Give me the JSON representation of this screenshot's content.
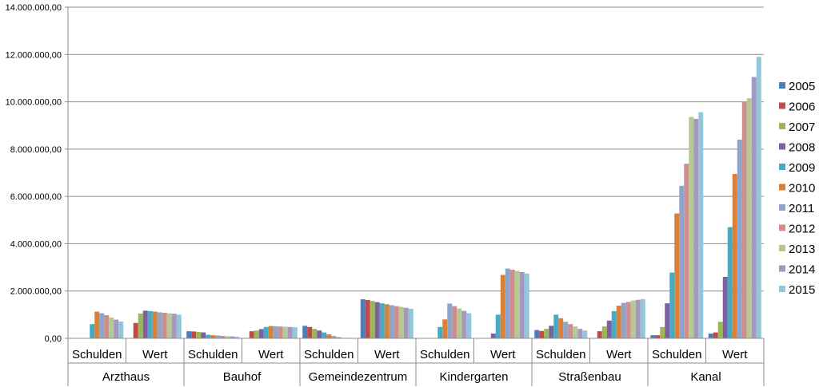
{
  "chart_data": {
    "type": "bar",
    "title": "",
    "xlabel": "",
    "ylabel": "",
    "ylim": [
      0,
      14000000
    ],
    "y_ticks": [
      0,
      2000000,
      4000000,
      6000000,
      8000000,
      10000000,
      12000000,
      14000000
    ],
    "y_tick_labels": [
      "0,00",
      "2.000.000,00",
      "4.000.000,00",
      "6.000.000,00",
      "8.000.000,00",
      "10.000.000,00",
      "12.000.000,00",
      "14.000.000,00"
    ],
    "grid": true,
    "legend_position": "right",
    "groups": [
      "Arzthaus",
      "Bauhof",
      "Gemeindezentrum",
      "Kindergarten",
      "Straßenbau",
      "Kanal"
    ],
    "subcategories": [
      "Schulden",
      "Wert"
    ],
    "categories": [
      "Arzthaus Schulden",
      "Arzthaus Wert",
      "Bauhof Schulden",
      "Bauhof Wert",
      "Gemeindezentrum Schulden",
      "Gemeindezentrum Wert",
      "Kindergarten Schulden",
      "Kindergarten Wert",
      "Straßenbau Schulden",
      "Straßenbau Wert",
      "Kanal Schulden",
      "Kanal Wert"
    ],
    "series": [
      {
        "name": "2005",
        "color": "#4A7EBB",
        "values": [
          0,
          0,
          300000,
          0,
          530000,
          1650000,
          0,
          0,
          350000,
          0,
          130000,
          200000
        ]
      },
      {
        "name": "2006",
        "color": "#BE4B48",
        "values": [
          0,
          650000,
          290000,
          300000,
          480000,
          1620000,
          0,
          0,
          310000,
          300000,
          130000,
          250000
        ]
      },
      {
        "name": "2007",
        "color": "#98B954",
        "values": [
          0,
          1050000,
          270000,
          330000,
          400000,
          1580000,
          0,
          0,
          400000,
          500000,
          480000,
          700000
        ]
      },
      {
        "name": "2008",
        "color": "#7D60A0",
        "values": [
          0,
          1170000,
          250000,
          390000,
          330000,
          1530000,
          0,
          200000,
          530000,
          750000,
          1480000,
          2600000
        ]
      },
      {
        "name": "2009",
        "color": "#46AAC5",
        "values": [
          600000,
          1150000,
          150000,
          480000,
          250000,
          1480000,
          480000,
          1000000,
          1000000,
          1150000,
          2780000,
          4700000
        ]
      },
      {
        "name": "2010",
        "color": "#DA8137",
        "values": [
          1130000,
          1130000,
          130000,
          520000,
          170000,
          1440000,
          800000,
          2680000,
          850000,
          1380000,
          5280000,
          6950000
        ]
      },
      {
        "name": "2011",
        "color": "#8EA5CB",
        "values": [
          1060000,
          1100000,
          120000,
          510000,
          100000,
          1400000,
          1470000,
          2950000,
          700000,
          1500000,
          6450000,
          8400000
        ]
      },
      {
        "name": "2012",
        "color": "#CE8E8D",
        "values": [
          980000,
          1080000,
          100000,
          500000,
          50000,
          1360000,
          1360000,
          2900000,
          600000,
          1540000,
          7380000,
          10020000
        ]
      },
      {
        "name": "2013",
        "color": "#B5CA92",
        "values": [
          880000,
          1060000,
          90000,
          490000,
          20000,
          1330000,
          1260000,
          2850000,
          500000,
          1600000,
          9360000,
          10150000
        ]
      },
      {
        "name": "2014",
        "color": "#A597BE",
        "values": [
          790000,
          1040000,
          80000,
          480000,
          20000,
          1290000,
          1160000,
          2800000,
          400000,
          1630000,
          9280000,
          11050000
        ]
      },
      {
        "name": "2015",
        "color": "#93C6D9",
        "values": [
          710000,
          1000000,
          70000,
          470000,
          10000,
          1250000,
          1060000,
          2740000,
          330000,
          1660000,
          9560000,
          11900000
        ]
      }
    ]
  }
}
